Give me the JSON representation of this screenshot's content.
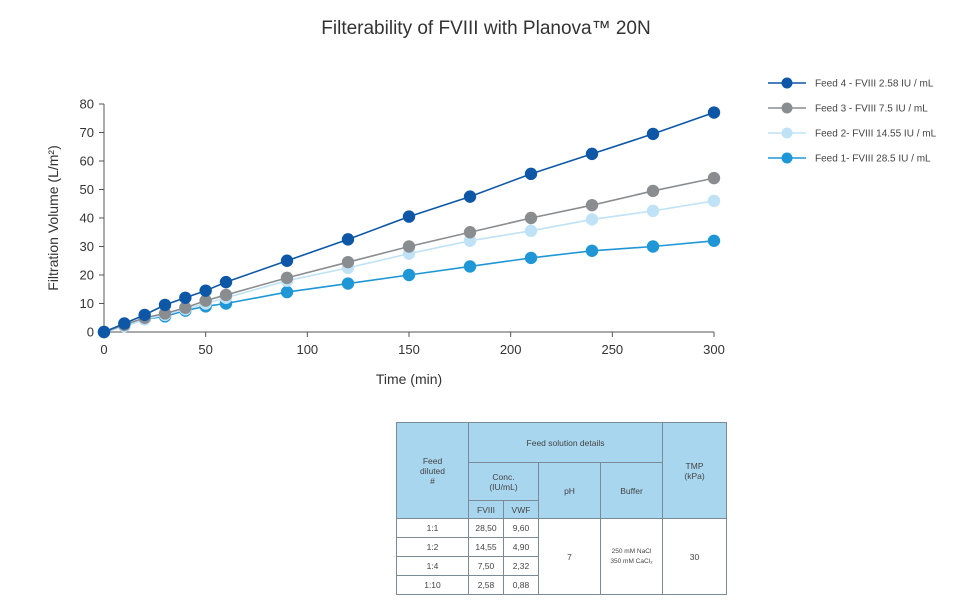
{
  "chart_data": {
    "type": "line",
    "title": "Filterability of FVIII with Planova™ 20N",
    "xlabel": "Time (min)",
    "ylabel": "Filtration Volume (L/m²)",
    "xlim": [
      0,
      300
    ],
    "ylim": [
      0,
      80
    ],
    "xticks": [
      0,
      50,
      100,
      150,
      200,
      250,
      300
    ],
    "yticks": [
      0,
      10,
      20,
      30,
      40,
      50,
      60,
      70,
      80
    ],
    "grid": false,
    "legend_position": "top-right",
    "series": [
      {
        "name": "Feed 4 - FVIII 2.58 IU / mL",
        "color": "#0d57a6",
        "x": [
          0,
          10,
          20,
          30,
          40,
          50,
          60,
          90,
          120,
          150,
          180,
          210,
          240,
          270,
          300
        ],
        "y": [
          0,
          3,
          6,
          9.5,
          12,
          14.5,
          17.5,
          25,
          32.5,
          40.5,
          47.5,
          55.5,
          62.5,
          69.5,
          77
        ]
      },
      {
        "name": "Feed 3 - FVIII 7.5 IU / mL",
        "color": "#8a8d90",
        "x": [
          0,
          10,
          20,
          30,
          40,
          50,
          60,
          90,
          120,
          150,
          180,
          210,
          240,
          270,
          300
        ],
        "y": [
          0,
          2.5,
          5,
          6.5,
          8.5,
          11,
          13,
          19,
          24.5,
          30,
          35,
          40,
          44.5,
          49.5,
          54
        ]
      },
      {
        "name": "Feed 2- FVIII 14.55 IU / mL",
        "color": "#bfe2f6",
        "x": [
          0,
          10,
          20,
          30,
          40,
          50,
          60,
          90,
          120,
          150,
          180,
          210,
          240,
          270,
          300
        ],
        "y": [
          0,
          2,
          4.5,
          6,
          8,
          10,
          12,
          18,
          22.5,
          27.5,
          32,
          35.5,
          39.5,
          42.5,
          46
        ]
      },
      {
        "name": "Feed 1- FVIII 28.5 IU / mL",
        "color": "#1f97d6",
        "x": [
          0,
          10,
          20,
          30,
          40,
          50,
          60,
          90,
          120,
          150,
          180,
          210,
          240,
          270,
          300
        ],
        "y": [
          0,
          2,
          4.5,
          5.5,
          7.5,
          9,
          10,
          14,
          17,
          20,
          23,
          26,
          28.5,
          30,
          32
        ]
      }
    ]
  },
  "table": {
    "header": {
      "feed_diluted": [
        "Feed",
        "diluted",
        "#"
      ],
      "feed_solution_details": "Feed solution details",
      "conc": [
        "Conc.",
        "(IU/mL)"
      ],
      "ph": "pH",
      "buffer": "Buffer",
      "tmp": [
        "TMP",
        "(kPa)"
      ],
      "fviii": "FVIII",
      "vwf": "VWF"
    },
    "rows": [
      {
        "dilution": "1:1",
        "fviii": "28,50",
        "vwf": "9,60"
      },
      {
        "dilution": "1:2",
        "fviii": "14,55",
        "vwf": "4,90"
      },
      {
        "dilution": "1:4",
        "fviii": "7,50",
        "vwf": "2,32"
      },
      {
        "dilution": "1:10",
        "fviii": "2,58",
        "vwf": "0,88"
      }
    ],
    "ph_value": "7",
    "buffer_lines": [
      "250 mM NaCl",
      "350 mM CaCl₂"
    ],
    "tmp_value": "30"
  }
}
